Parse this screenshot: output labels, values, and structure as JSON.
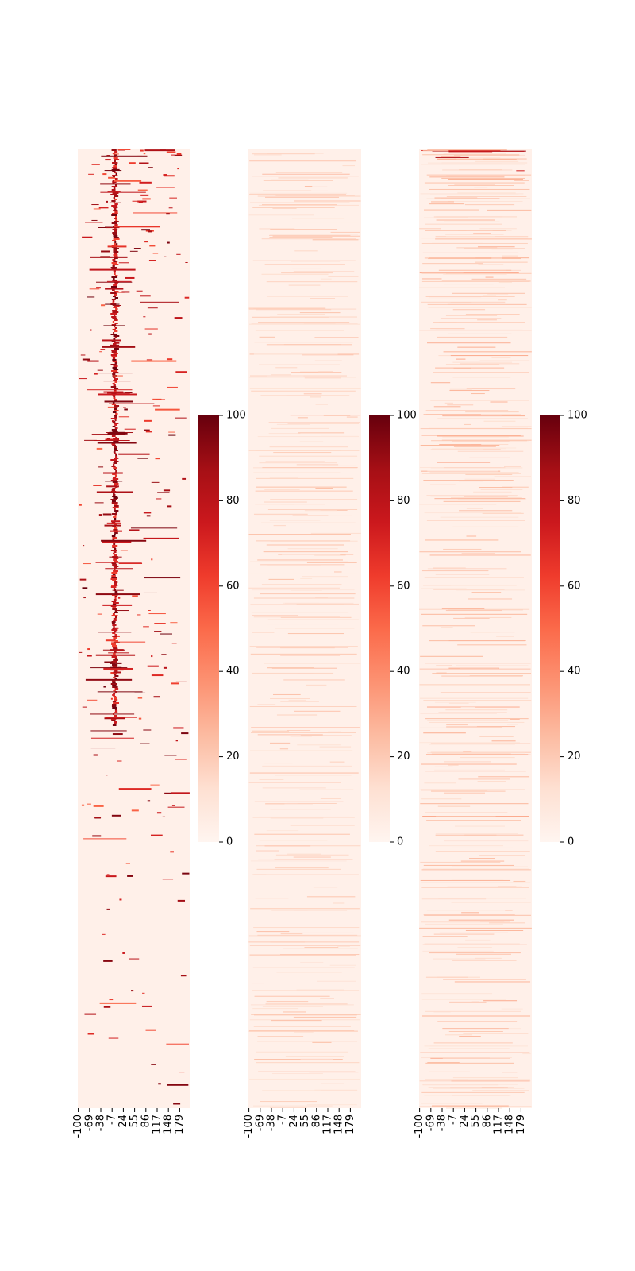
{
  "chart_data": [
    {
      "type": "heatmap",
      "x_tick_labels": [
        "-100",
        "-69",
        "-38",
        "-7",
        "24",
        "55",
        "86",
        "117",
        "148",
        "179"
      ],
      "value_range": [
        0,
        100
      ],
      "colormap": "Reds",
      "colorbar_ticks": [
        "0",
        "20",
        "40",
        "60",
        "80",
        "100"
      ],
      "y_tick_labels": [],
      "pattern": "sparse dark streaks concentrated near x=-7, scattered isolated marks elsewhere, density decreasing toward bottom rows"
    },
    {
      "type": "heatmap",
      "x_tick_labels": [
        "-100",
        "-69",
        "-38",
        "-7",
        "24",
        "55",
        "86",
        "117",
        "148",
        "179"
      ],
      "value_range": [
        0,
        100
      ],
      "colormap": "Reds",
      "colorbar_ticks": [
        "0",
        "20",
        "40",
        "60",
        "80",
        "100"
      ],
      "y_tick_labels": [],
      "pattern": "mostly low values (0-15) with faint horizontal streaks across rows"
    },
    {
      "type": "heatmap",
      "x_tick_labels": [
        "-100",
        "-69",
        "-38",
        "-7",
        "24",
        "55",
        "86",
        "117",
        "148",
        "179"
      ],
      "value_range": [
        0,
        100
      ],
      "colormap": "Reds",
      "colorbar_ticks": [
        "0",
        "20",
        "40",
        "60",
        "80",
        "100"
      ],
      "y_tick_labels": [],
      "pattern": "low values with denser light streaks in upper half, a few darker lines near the top"
    }
  ]
}
